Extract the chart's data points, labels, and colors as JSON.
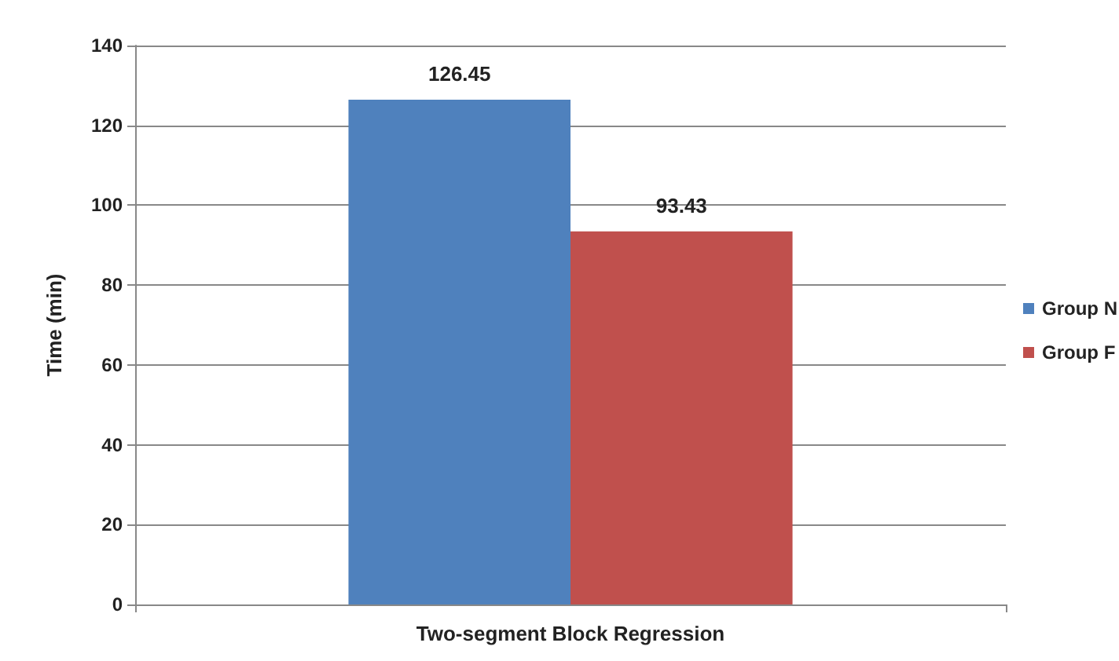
{
  "chart_data": {
    "type": "bar",
    "xlabel": null,
    "ylabel": "Time (min)",
    "categories": [
      "Two-segment Block Regression"
    ],
    "series": [
      {
        "name": "Group N",
        "color": "#4f81bd",
        "values": [
          126.45
        ]
      },
      {
        "name": "Group F",
        "color": "#c0504d",
        "values": [
          93.43
        ]
      }
    ],
    "ylim": [
      0,
      140
    ],
    "yticks": [
      0,
      20,
      40,
      60,
      80,
      100,
      120,
      140
    ],
    "grid": "y",
    "legend": "right",
    "data_labels": true
  }
}
